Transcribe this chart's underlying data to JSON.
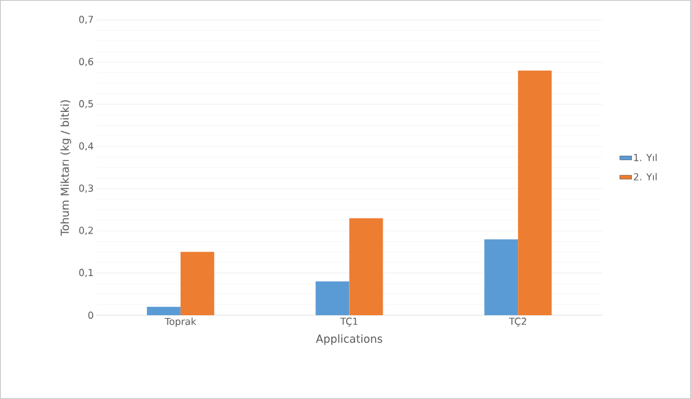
{
  "chart_data": {
    "type": "bar",
    "xlabel": "Applications",
    "ylabel": "Tohum Miktarı (kg / bitki)",
    "categories": [
      "Toprak",
      "TÇ1",
      "TÇ2"
    ],
    "series": [
      {
        "name": "1. Yıl",
        "color": "#5b9bd5",
        "values": [
          0.02,
          0.08,
          0.18
        ]
      },
      {
        "name": "2. Yıl",
        "color": "#ed7d31",
        "values": [
          0.15,
          0.23,
          0.58
        ]
      }
    ],
    "ylim": [
      0,
      0.7
    ],
    "yticks": [
      0,
      {
        "value": 0.1,
        "label": "0,1"
      },
      {
        "value": 0.2,
        "label": "0,2"
      },
      {
        "value": 0.3,
        "label": "0,3"
      },
      {
        "value": 0.4,
        "label": "0,4"
      },
      {
        "value": 0.5,
        "label": "0,5"
      },
      {
        "value": 0.6,
        "label": "0,6"
      },
      {
        "value": 0.7,
        "label": "0,7"
      }
    ],
    "grid": "y",
    "legend": "right"
  }
}
